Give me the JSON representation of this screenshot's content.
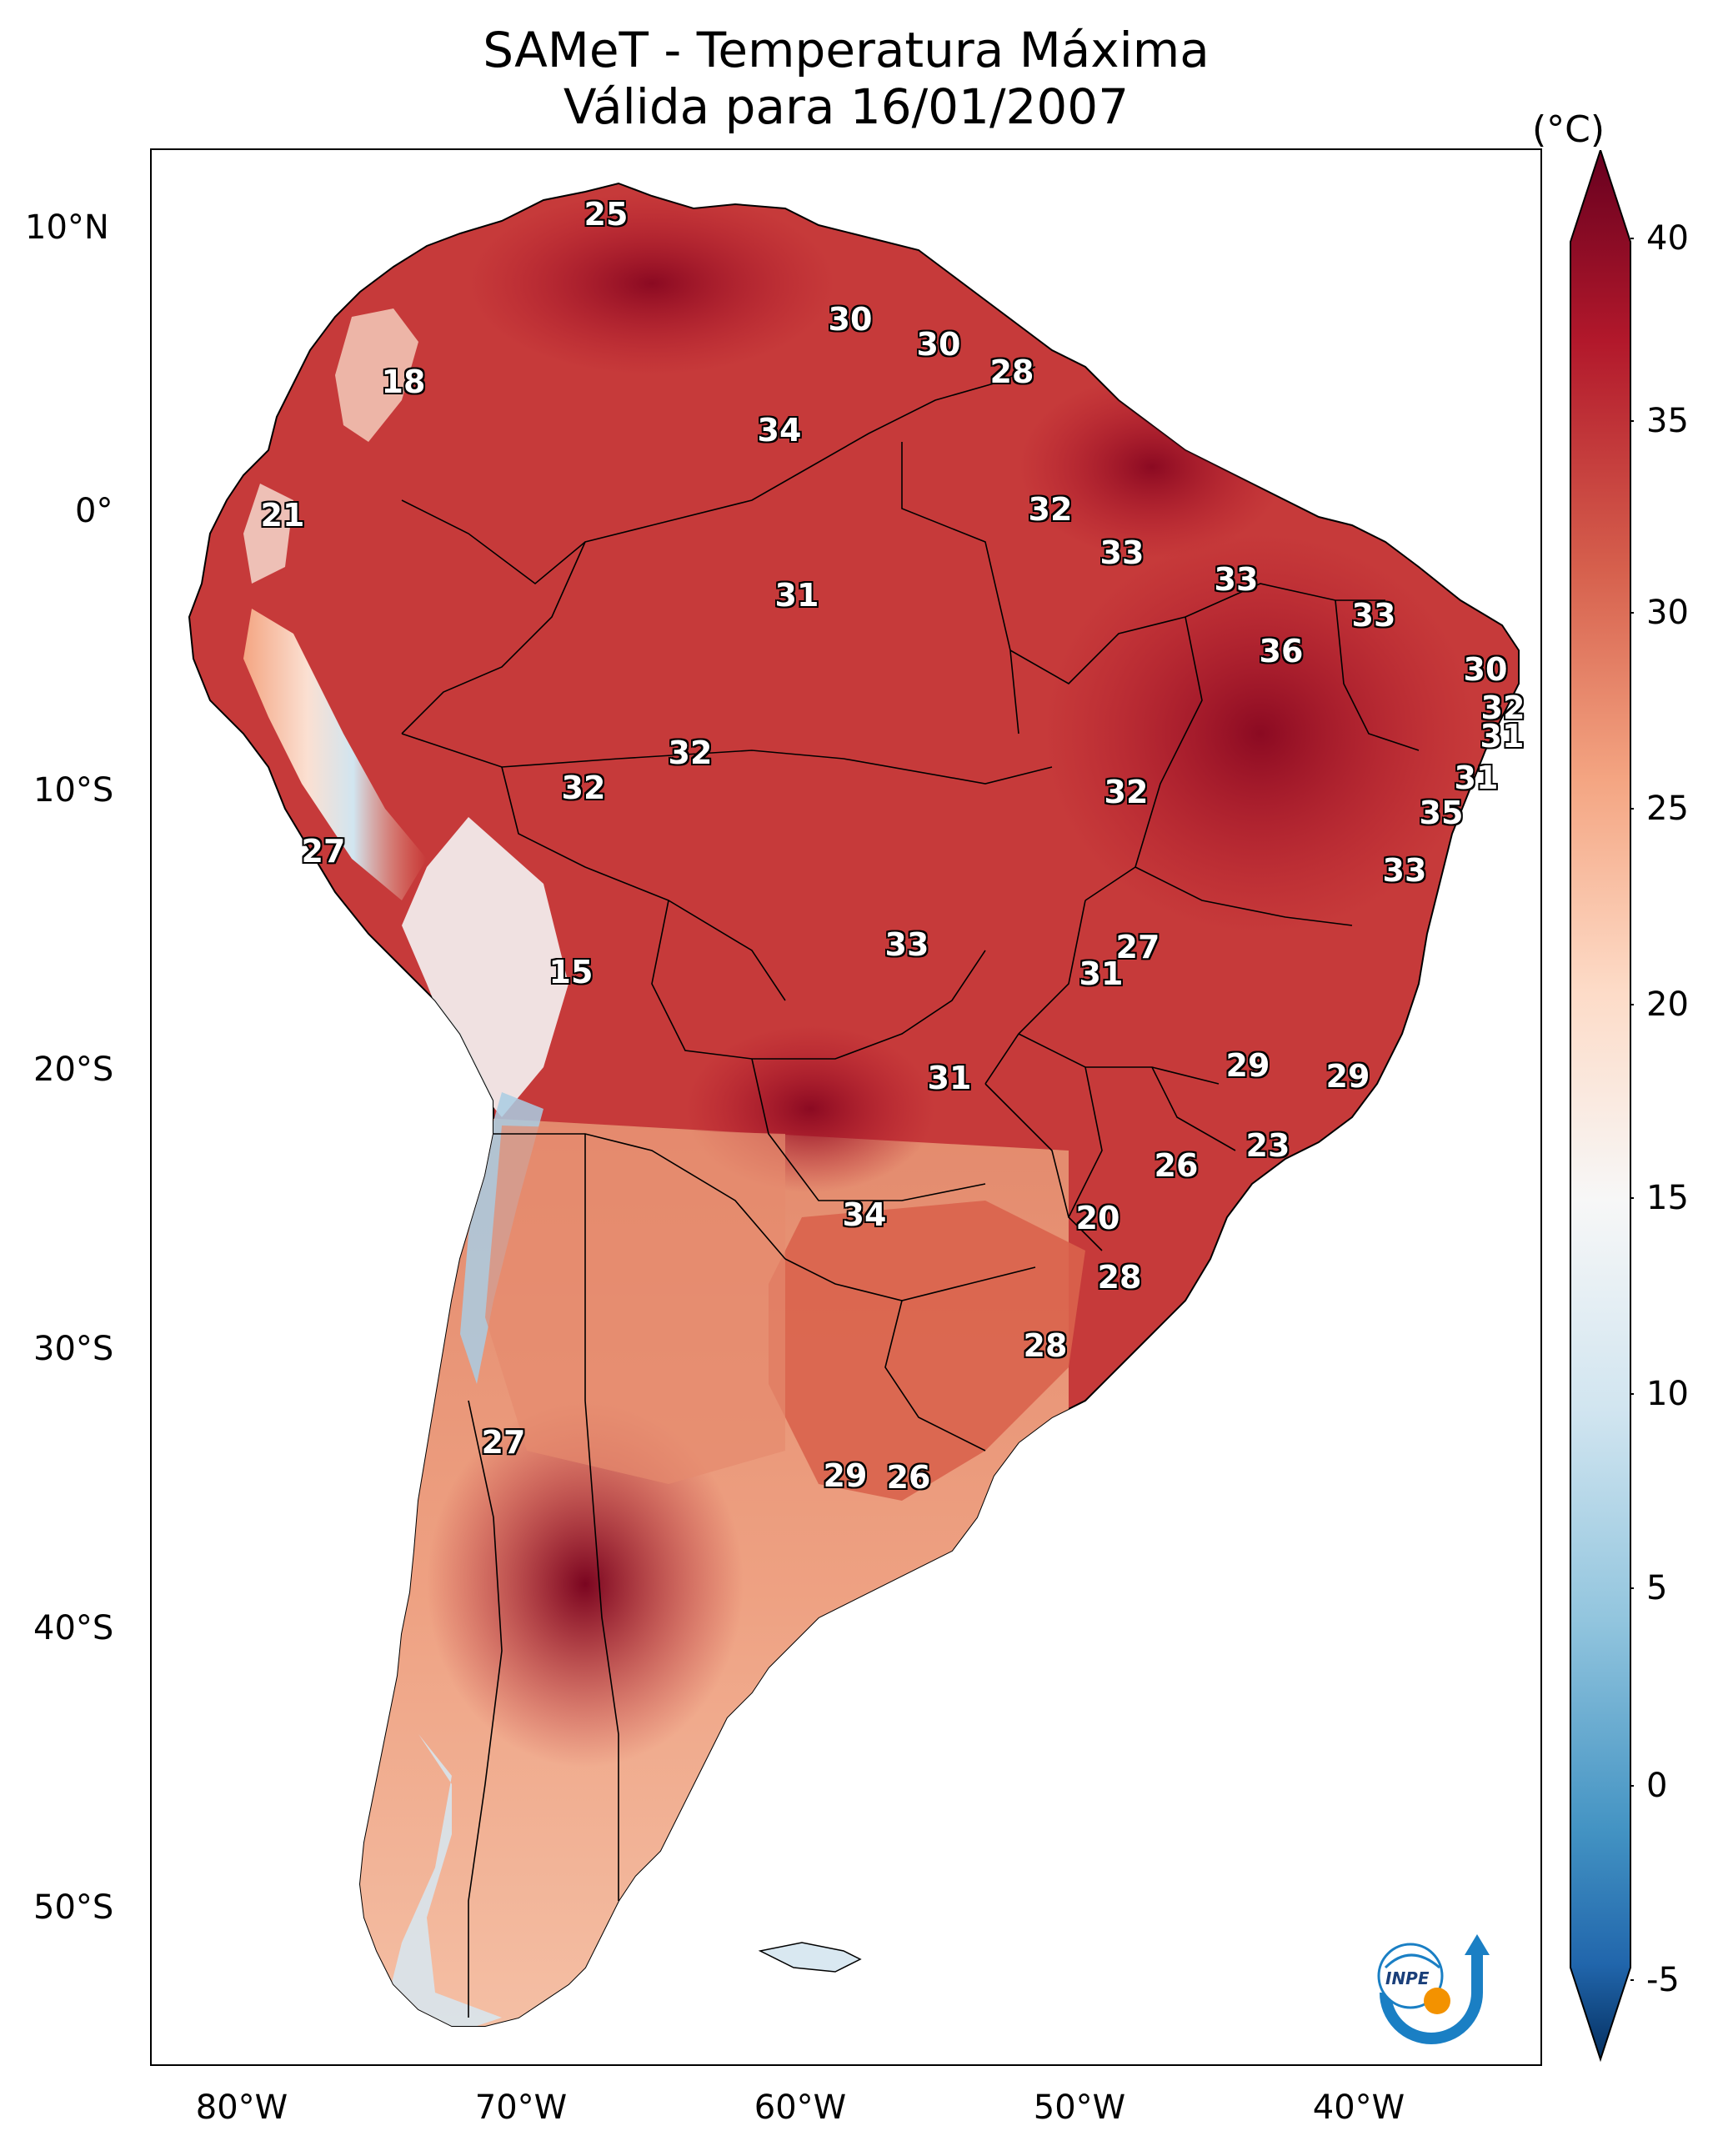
{
  "title": {
    "line1": "SAMeT - Temperatura Máxima",
    "line2": "Válida para 16/01/2007"
  },
  "axes": {
    "lat_labels": [
      "10°N",
      "0°",
      "10°S",
      "20°S",
      "30°S",
      "40°S",
      "50°S"
    ],
    "lon_labels": [
      "80°W",
      "70°W",
      "60°W",
      "50°W",
      "40°W"
    ]
  },
  "colorbar": {
    "unit": "(°C)",
    "ticks": [
      "40",
      "35",
      "30",
      "25",
      "20",
      "15",
      "10",
      "5",
      "0",
      "-5"
    ],
    "range": [
      -5,
      40
    ],
    "colors": [
      "#053061",
      "#2166ac",
      "#4393c3",
      "#92c5de",
      "#d1e5f0",
      "#f7f7f7",
      "#fddbc7",
      "#f4a582",
      "#d6604d",
      "#b2182b",
      "#67001f"
    ]
  },
  "contour_labels": [
    {
      "text": "25"
    },
    {
      "text": "18"
    },
    {
      "text": "21"
    },
    {
      "text": "30"
    },
    {
      "text": "30"
    },
    {
      "text": "28"
    },
    {
      "text": "34"
    },
    {
      "text": "32"
    },
    {
      "text": "33"
    },
    {
      "text": "33"
    },
    {
      "text": "33"
    },
    {
      "text": "31"
    },
    {
      "text": "36"
    },
    {
      "text": "30"
    },
    {
      "text": "32"
    },
    {
      "text": "31"
    },
    {
      "text": "31"
    },
    {
      "text": "32"
    },
    {
      "text": "32"
    },
    {
      "text": "32"
    },
    {
      "text": "35"
    },
    {
      "text": "27"
    },
    {
      "text": "33"
    },
    {
      "text": "15"
    },
    {
      "text": "33"
    },
    {
      "text": "27"
    },
    {
      "text": "31"
    },
    {
      "text": "31"
    },
    {
      "text": "29"
    },
    {
      "text": "29"
    },
    {
      "text": "23"
    },
    {
      "text": "26"
    },
    {
      "text": "34"
    },
    {
      "text": "20"
    },
    {
      "text": "28"
    },
    {
      "text": "28"
    },
    {
      "text": "27"
    },
    {
      "text": "29"
    },
    {
      "text": "26"
    }
  ],
  "logo": {
    "text": "INPE"
  }
}
